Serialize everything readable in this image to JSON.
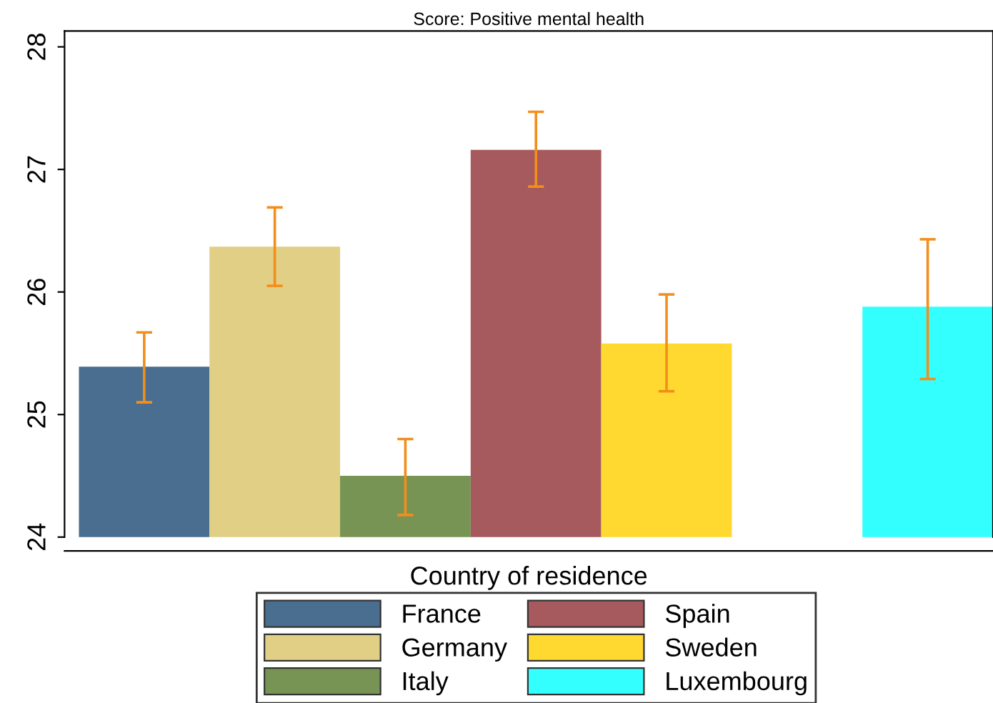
{
  "chart_data": {
    "type": "bar",
    "title": "Score: Positive mental health",
    "xlabel": "Country of residence",
    "categories": [
      null
    ],
    "series": [
      {
        "name": "France",
        "color": "#4a6e8f",
        "values": [
          25.39
        ],
        "errors": [
          [
            25.1,
            25.67
          ]
        ]
      },
      {
        "name": "Germany",
        "color": "#e0cf85",
        "values": [
          26.37
        ],
        "errors": [
          [
            26.05,
            26.69
          ]
        ]
      },
      {
        "name": "Italy",
        "color": "#779455",
        "values": [
          24.5
        ],
        "errors": [
          [
            24.18,
            24.8
          ]
        ]
      },
      {
        "name": "Spain",
        "color": "#a65a5d",
        "values": [
          27.16
        ],
        "errors": [
          [
            26.86,
            27.47
          ]
        ]
      },
      {
        "name": "Sweden",
        "color": "#ffd92f",
        "values": [
          25.58
        ],
        "errors": [
          [
            25.19,
            25.98
          ]
        ]
      },
      {
        "values": [
          null
        ]
      },
      {
        "name": "Luxembourg",
        "color": "#33ffff",
        "values": [
          25.88
        ],
        "errors": [
          [
            25.29,
            26.43
          ]
        ]
      }
    ],
    "ylim": [
      24,
      28.13
    ],
    "yticks": [
      24,
      25,
      26,
      27,
      28
    ],
    "grid": false,
    "legend": "bottom"
  }
}
